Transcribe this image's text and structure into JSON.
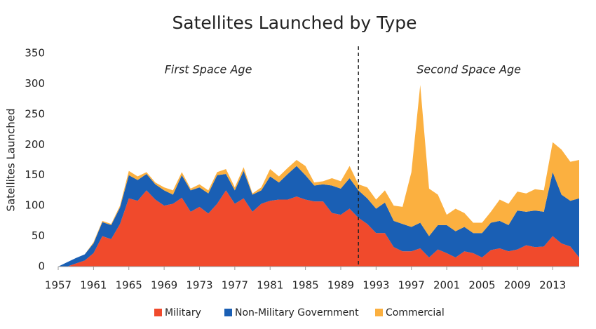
{
  "chart_data": {
    "type": "stacked_area",
    "title": "Satellites Launched by Type",
    "y_label": "Satellites Launched",
    "x": [
      1957,
      1958,
      1959,
      1960,
      1961,
      1962,
      1963,
      1964,
      1965,
      1966,
      1967,
      1968,
      1969,
      1970,
      1971,
      1972,
      1973,
      1974,
      1975,
      1976,
      1977,
      1978,
      1979,
      1980,
      1981,
      1982,
      1983,
      1984,
      1985,
      1986,
      1987,
      1988,
      1989,
      1990,
      1991,
      1992,
      1993,
      1994,
      1995,
      1996,
      1997,
      1998,
      1999,
      2000,
      2001,
      2002,
      2003,
      2004,
      2005,
      2006,
      2007,
      2008,
      2009,
      2010,
      2011,
      2012,
      2013,
      2014,
      2015,
      2016
    ],
    "series": [
      {
        "name": "Military",
        "color": "#f04a2c",
        "values": [
          0,
          0,
          5,
          10,
          22,
          50,
          45,
          70,
          112,
          108,
          125,
          110,
          100,
          103,
          113,
          90,
          98,
          87,
          103,
          125,
          103,
          112,
          90,
          103,
          108,
          110,
          110,
          115,
          110,
          107,
          107,
          88,
          85,
          95,
          80,
          70,
          55,
          55,
          32,
          25,
          25,
          30,
          15,
          28,
          22,
          15,
          25,
          22,
          15,
          27,
          30,
          25,
          28,
          35,
          32,
          33,
          50,
          38,
          33,
          15
        ]
      },
      {
        "name": "Non-Military Government",
        "color": "#1a5fb4",
        "values": [
          0,
          7,
          9,
          10,
          16,
          23,
          23,
          27,
          38,
          34,
          27,
          25,
          25,
          15,
          37,
          35,
          32,
          33,
          47,
          27,
          22,
          45,
          28,
          22,
          40,
          28,
          42,
          50,
          40,
          26,
          28,
          45,
          43,
          50,
          45,
          42,
          40,
          50,
          43,
          45,
          40,
          42,
          35,
          40,
          46,
          43,
          40,
          33,
          40,
          45,
          45,
          43,
          64,
          55,
          60,
          57,
          105,
          80,
          75,
          97
        ]
      },
      {
        "name": "Commercial",
        "color": "#fbb040",
        "values": [
          0,
          0,
          0,
          0,
          2,
          2,
          2,
          3,
          7,
          6,
          3,
          3,
          5,
          7,
          5,
          3,
          5,
          5,
          5,
          8,
          5,
          6,
          2,
          5,
          12,
          10,
          10,
          10,
          15,
          5,
          5,
          12,
          12,
          20,
          10,
          18,
          15,
          20,
          25,
          28,
          90,
          226,
          78,
          50,
          17,
          37,
          23,
          17,
          17,
          18,
          35,
          35,
          31,
          30,
          35,
          35,
          49,
          74,
          64,
          63
        ]
      }
    ],
    "xlim": [
      1957,
      2016
    ],
    "xticks": [
      1957,
      1961,
      1965,
      1969,
      1973,
      1977,
      1981,
      1985,
      1989,
      1993,
      1997,
      2001,
      2005,
      2009,
      2013
    ],
    "ylim": [
      0,
      350
    ],
    "yticks": [
      0,
      50,
      100,
      150,
      200,
      250,
      300,
      350
    ],
    "divider": 1991,
    "annotations": [
      "First Space Age",
      "Second Space Age"
    ],
    "legend": "bottom"
  }
}
